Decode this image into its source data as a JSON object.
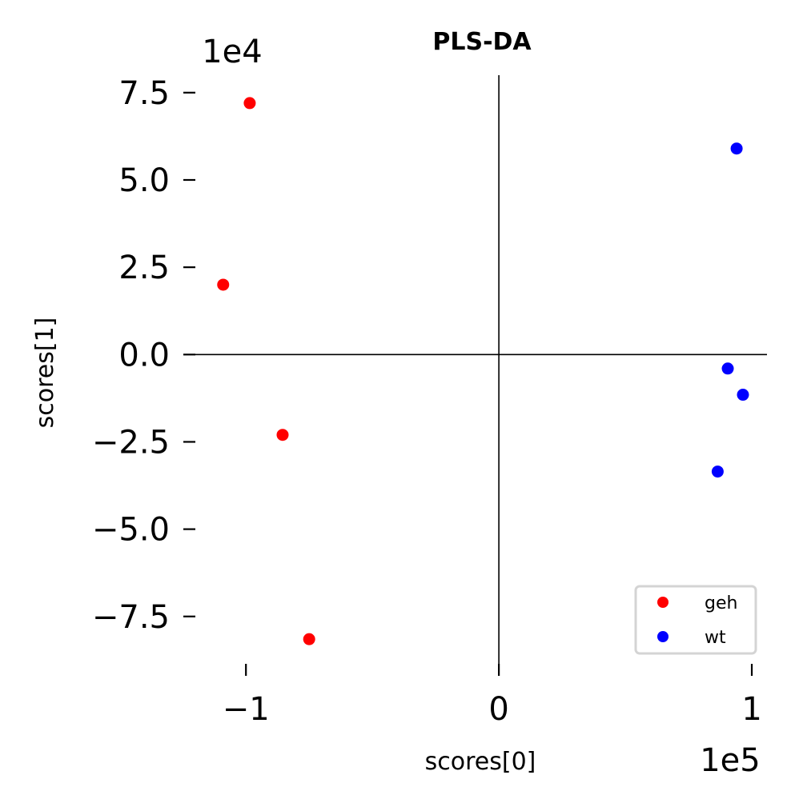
{
  "chart_data": {
    "type": "scatter",
    "title": "PLS-DA",
    "xlabel": "scores[0]",
    "ylabel": "scores[1]",
    "x_offset_label": "1e5",
    "y_offset_label": "1e4",
    "xlim": [
      -1.2,
      1.06
    ],
    "ylim": [
      -9.2,
      8.0
    ],
    "x_ticks": [
      {
        "value": -1,
        "label": "−1"
      },
      {
        "value": 0,
        "label": "0"
      },
      {
        "value": 1,
        "label": "1"
      }
    ],
    "y_ticks": [
      {
        "value": 7.5,
        "label": "7.5"
      },
      {
        "value": 5.0,
        "label": "5.0"
      },
      {
        "value": 2.5,
        "label": "2.5"
      },
      {
        "value": 0.0,
        "label": "0.0"
      },
      {
        "value": -2.5,
        "label": "−2.5"
      },
      {
        "value": -5.0,
        "label": "−5.0"
      },
      {
        "value": -7.5,
        "label": "−7.5"
      }
    ],
    "zero_lines": true,
    "legend_position": "lower-right",
    "series": [
      {
        "name": "geh",
        "color": "#ff0000",
        "points": [
          {
            "x": -0.985,
            "y": 7.2
          },
          {
            "x": -1.09,
            "y": 2.0
          },
          {
            "x": -0.855,
            "y": -2.3
          },
          {
            "x": -0.75,
            "y": -8.15
          }
        ]
      },
      {
        "name": "wt",
        "color": "#0000ff",
        "points": [
          {
            "x": 0.94,
            "y": 5.9
          },
          {
            "x": 0.905,
            "y": -0.4
          },
          {
            "x": 0.965,
            "y": -1.15
          },
          {
            "x": 0.865,
            "y": -3.35
          }
        ]
      }
    ]
  }
}
